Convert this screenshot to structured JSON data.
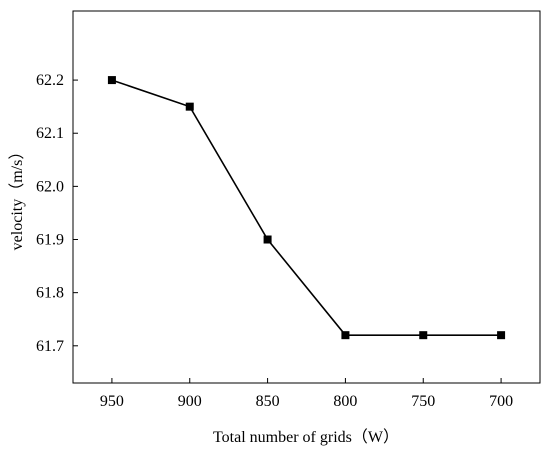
{
  "chart_data": {
    "type": "line",
    "title": "",
    "xlabel": "Total number of grids（W）",
    "ylabel": "velocity（m/s）",
    "x_reversed": true,
    "xlim": [
      975,
      675
    ],
    "ylim": [
      61.63,
      62.33
    ],
    "x_ticks": [
      "950",
      "900",
      "850",
      "800",
      "750",
      "700"
    ],
    "y_ticks": [
      "61.7",
      "61.8",
      "61.9",
      "62.0",
      "62.1",
      "62.2"
    ],
    "grid": false,
    "legend": "none",
    "series": [
      {
        "name": "",
        "marker": "square",
        "color": "#000000",
        "x": [
          950,
          900,
          850,
          800,
          750,
          700
        ],
        "y": [
          62.2,
          62.15,
          61.9,
          61.72,
          61.72,
          61.72
        ]
      }
    ]
  }
}
